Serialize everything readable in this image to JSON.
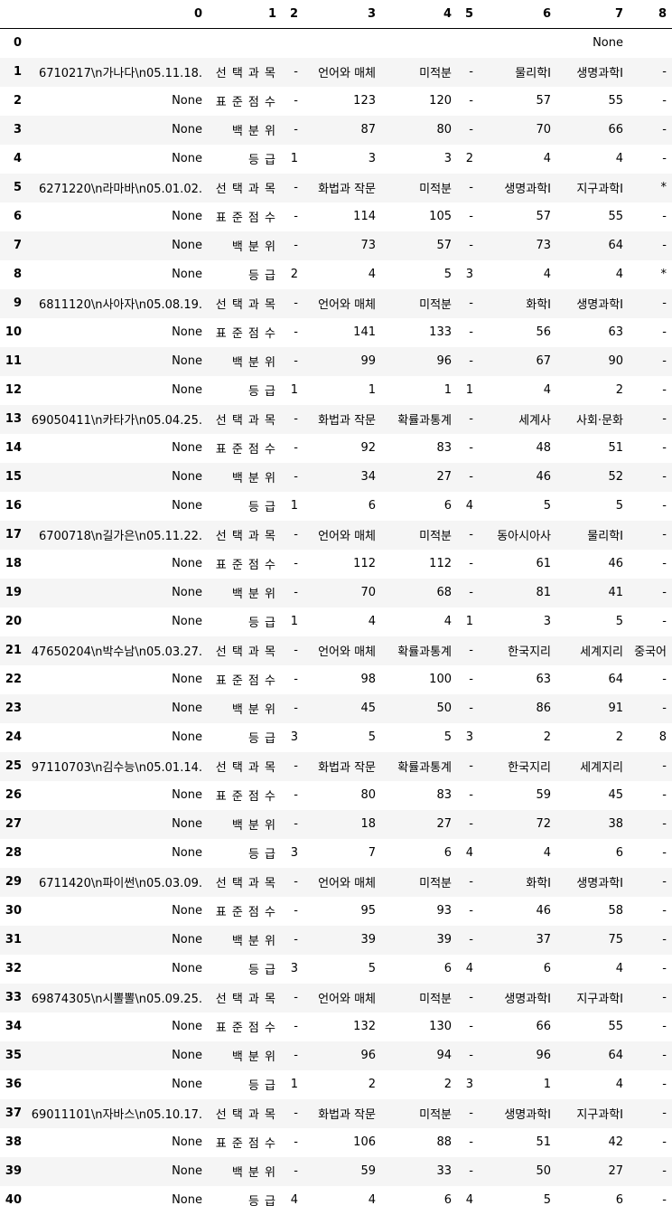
{
  "columns": [
    "",
    "0",
    "1",
    "2",
    "3",
    "4",
    "5",
    "6",
    "7",
    "8"
  ],
  "rows": [
    [
      "0",
      "",
      "",
      "",
      "",
      "",
      "",
      "",
      "None",
      ""
    ],
    [
      "1",
      "6710217\\n가나다\\n05.11.18.",
      "선 택 과 목",
      "-",
      "언어와 매체",
      "미적분",
      "-",
      "물리학Ⅰ",
      "생명과학Ⅰ",
      "-"
    ],
    [
      "2",
      "None",
      "표 준 점 수",
      "-",
      "123",
      "120",
      "-",
      "57",
      "55",
      "-"
    ],
    [
      "3",
      "None",
      "백 분 위",
      "-",
      "87",
      "80",
      "-",
      "70",
      "66",
      "-"
    ],
    [
      "4",
      "None",
      "등 급",
      "1",
      "3",
      "3",
      "2",
      "4",
      "4",
      "-"
    ],
    [
      "5",
      "6271220\\n라마바\\n05.01.02.",
      "선 택 과 목",
      "-",
      "화법과 작문",
      "미적분",
      "-",
      "생명과학Ⅰ",
      "지구과학Ⅰ",
      "*"
    ],
    [
      "6",
      "None",
      "표 준 점 수",
      "-",
      "114",
      "105",
      "-",
      "57",
      "55",
      "-"
    ],
    [
      "7",
      "None",
      "백 분 위",
      "-",
      "73",
      "57",
      "-",
      "73",
      "64",
      "-"
    ],
    [
      "8",
      "None",
      "등 급",
      "2",
      "4",
      "5",
      "3",
      "4",
      "4",
      "*"
    ],
    [
      "9",
      "6811120\\n사아자\\n05.08.19.",
      "선 택 과 목",
      "-",
      "언어와 매체",
      "미적분",
      "-",
      "화학Ⅰ",
      "생명과학Ⅰ",
      "-"
    ],
    [
      "10",
      "None",
      "표 준 점 수",
      "-",
      "141",
      "133",
      "-",
      "56",
      "63",
      "-"
    ],
    [
      "11",
      "None",
      "백 분 위",
      "-",
      "99",
      "96",
      "-",
      "67",
      "90",
      "-"
    ],
    [
      "12",
      "None",
      "등 급",
      "1",
      "1",
      "1",
      "1",
      "4",
      "2",
      "-"
    ],
    [
      "13",
      "69050411\\n카타가\\n05.04.25.",
      "선 택 과 목",
      "-",
      "화법과 작문",
      "확률과통계",
      "-",
      "세계사",
      "사회·문화",
      "-"
    ],
    [
      "14",
      "None",
      "표 준 점 수",
      "-",
      "92",
      "83",
      "-",
      "48",
      "51",
      "-"
    ],
    [
      "15",
      "None",
      "백 분 위",
      "-",
      "34",
      "27",
      "-",
      "46",
      "52",
      "-"
    ],
    [
      "16",
      "None",
      "등 급",
      "1",
      "6",
      "6",
      "4",
      "5",
      "5",
      "-"
    ],
    [
      "17",
      "6700718\\n길가은\\n05.11.22.",
      "선 택 과 목",
      "-",
      "언어와 매체",
      "미적분",
      "-",
      "동아시아사",
      "물리학Ⅰ",
      "-"
    ],
    [
      "18",
      "None",
      "표 준 점 수",
      "-",
      "112",
      "112",
      "-",
      "61",
      "46",
      "-"
    ],
    [
      "19",
      "None",
      "백 분 위",
      "-",
      "70",
      "68",
      "-",
      "81",
      "41",
      "-"
    ],
    [
      "20",
      "None",
      "등 급",
      "1",
      "4",
      "4",
      "1",
      "3",
      "5",
      "-"
    ],
    [
      "21",
      "47650204\\n박수남\\n05.03.27.",
      "선 택 과 목",
      "-",
      "언어와 매체",
      "확률과통계",
      "-",
      "한국지리",
      "세계지리",
      "중국어"
    ],
    [
      "22",
      "None",
      "표 준 점 수",
      "-",
      "98",
      "100",
      "-",
      "63",
      "64",
      "-"
    ],
    [
      "23",
      "None",
      "백 분 위",
      "-",
      "45",
      "50",
      "-",
      "86",
      "91",
      "-"
    ],
    [
      "24",
      "None",
      "등 급",
      "3",
      "5",
      "5",
      "3",
      "2",
      "2",
      "8"
    ],
    [
      "25",
      "97110703\\n김수능\\n05.01.14.",
      "선 택 과 목",
      "-",
      "화법과 작문",
      "확률과통계",
      "-",
      "한국지리",
      "세계지리",
      "-"
    ],
    [
      "26",
      "None",
      "표 준 점 수",
      "-",
      "80",
      "83",
      "-",
      "59",
      "45",
      "-"
    ],
    [
      "27",
      "None",
      "백 분 위",
      "-",
      "18",
      "27",
      "-",
      "72",
      "38",
      "-"
    ],
    [
      "28",
      "None",
      "등 급",
      "3",
      "7",
      "6",
      "4",
      "4",
      "6",
      "-"
    ],
    [
      "29",
      "6711420\\n파이썬\\n05.03.09.",
      "선 택 과 목",
      "-",
      "언어와 매체",
      "미적분",
      "-",
      "화학Ⅰ",
      "생명과학Ⅰ",
      "-"
    ],
    [
      "30",
      "None",
      "표 준 점 수",
      "-",
      "95",
      "93",
      "-",
      "46",
      "58",
      "-"
    ],
    [
      "31",
      "None",
      "백 분 위",
      "-",
      "39",
      "39",
      "-",
      "37",
      "75",
      "-"
    ],
    [
      "32",
      "None",
      "등 급",
      "3",
      "5",
      "6",
      "4",
      "6",
      "4",
      "-"
    ],
    [
      "33",
      "69874305\\n시뽈뽈\\n05.09.25.",
      "선 택 과 목",
      "-",
      "언어와 매체",
      "미적분",
      "-",
      "생명과학Ⅰ",
      "지구과학Ⅰ",
      "-"
    ],
    [
      "34",
      "None",
      "표 준 점 수",
      "-",
      "132",
      "130",
      "-",
      "66",
      "55",
      "-"
    ],
    [
      "35",
      "None",
      "백 분 위",
      "-",
      "96",
      "94",
      "-",
      "96",
      "64",
      "-"
    ],
    [
      "36",
      "None",
      "등 급",
      "1",
      "2",
      "2",
      "3",
      "1",
      "4",
      "-"
    ],
    [
      "37",
      "69011101\\n자바스\\n05.10.17.",
      "선 택 과 목",
      "-",
      "화법과 작문",
      "미적분",
      "-",
      "생명과학Ⅰ",
      "지구과학Ⅰ",
      "-"
    ],
    [
      "38",
      "None",
      "표 준 점 수",
      "-",
      "106",
      "88",
      "-",
      "51",
      "42",
      "-"
    ],
    [
      "39",
      "None",
      "백 분 위",
      "-",
      "59",
      "33",
      "-",
      "50",
      "27",
      "-"
    ],
    [
      "40",
      "None",
      "등 급",
      "4",
      "4",
      "6",
      "4",
      "5",
      "6",
      "-"
    ]
  ]
}
